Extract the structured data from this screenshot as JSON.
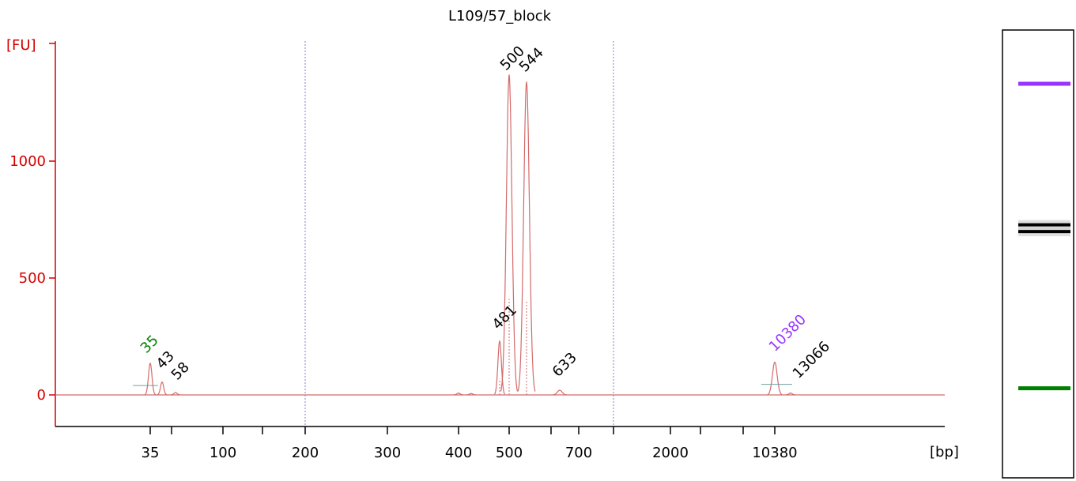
{
  "chart_data": {
    "type": "line",
    "title": "L109/57_block",
    "ylabel": "[FU]",
    "xlabel": "[bp]",
    "ylim": [
      -130,
      1530
    ],
    "y_ticks": [
      0,
      500,
      1000
    ],
    "x_ticks": [
      "35",
      "100",
      "200",
      "300",
      "400",
      "500",
      "700",
      "2000",
      "10380"
    ],
    "series": [
      {
        "values": [
          {
            "x": 35,
            "y": 135
          },
          {
            "x": 43,
            "y": 55
          },
          {
            "x": 58,
            "y": 10
          },
          {
            "x": 481,
            "y": 230
          },
          {
            "x": 500,
            "y": 1370
          },
          {
            "x": 544,
            "y": 1340
          },
          {
            "x": 633,
            "y": 20
          },
          {
            "x": 10380,
            "y": 140
          },
          {
            "x": 13066,
            "y": 8
          }
        ]
      }
    ],
    "peak_labels": [
      {
        "text": "35",
        "color": "#008000"
      },
      {
        "text": "43",
        "color": "#000000"
      },
      {
        "text": "58",
        "color": "#000000"
      },
      {
        "text": "481",
        "color": "#000000"
      },
      {
        "text": "500",
        "color": "#000000"
      },
      {
        "text": "544",
        "color": "#000000"
      },
      {
        "text": "633",
        "color": "#000000"
      },
      {
        "text": "10380",
        "color": "#9933ff"
      },
      {
        "text": "13066",
        "color": "#000000"
      }
    ],
    "colors": {
      "axis": "#d40000",
      "trace": "#d46a6a",
      "divider": "#8080cc",
      "lower_marker": "#008000",
      "upper_marker": "#9933ff",
      "sample_bands": "#000000"
    },
    "gel": {
      "bands": [
        {
          "label": "lower_marker",
          "level": 0.2
        },
        {
          "label": "sample",
          "level": 0.55
        },
        {
          "label": "sample",
          "level": 0.565
        },
        {
          "label": "upper_marker",
          "level": 0.88
        }
      ]
    }
  }
}
